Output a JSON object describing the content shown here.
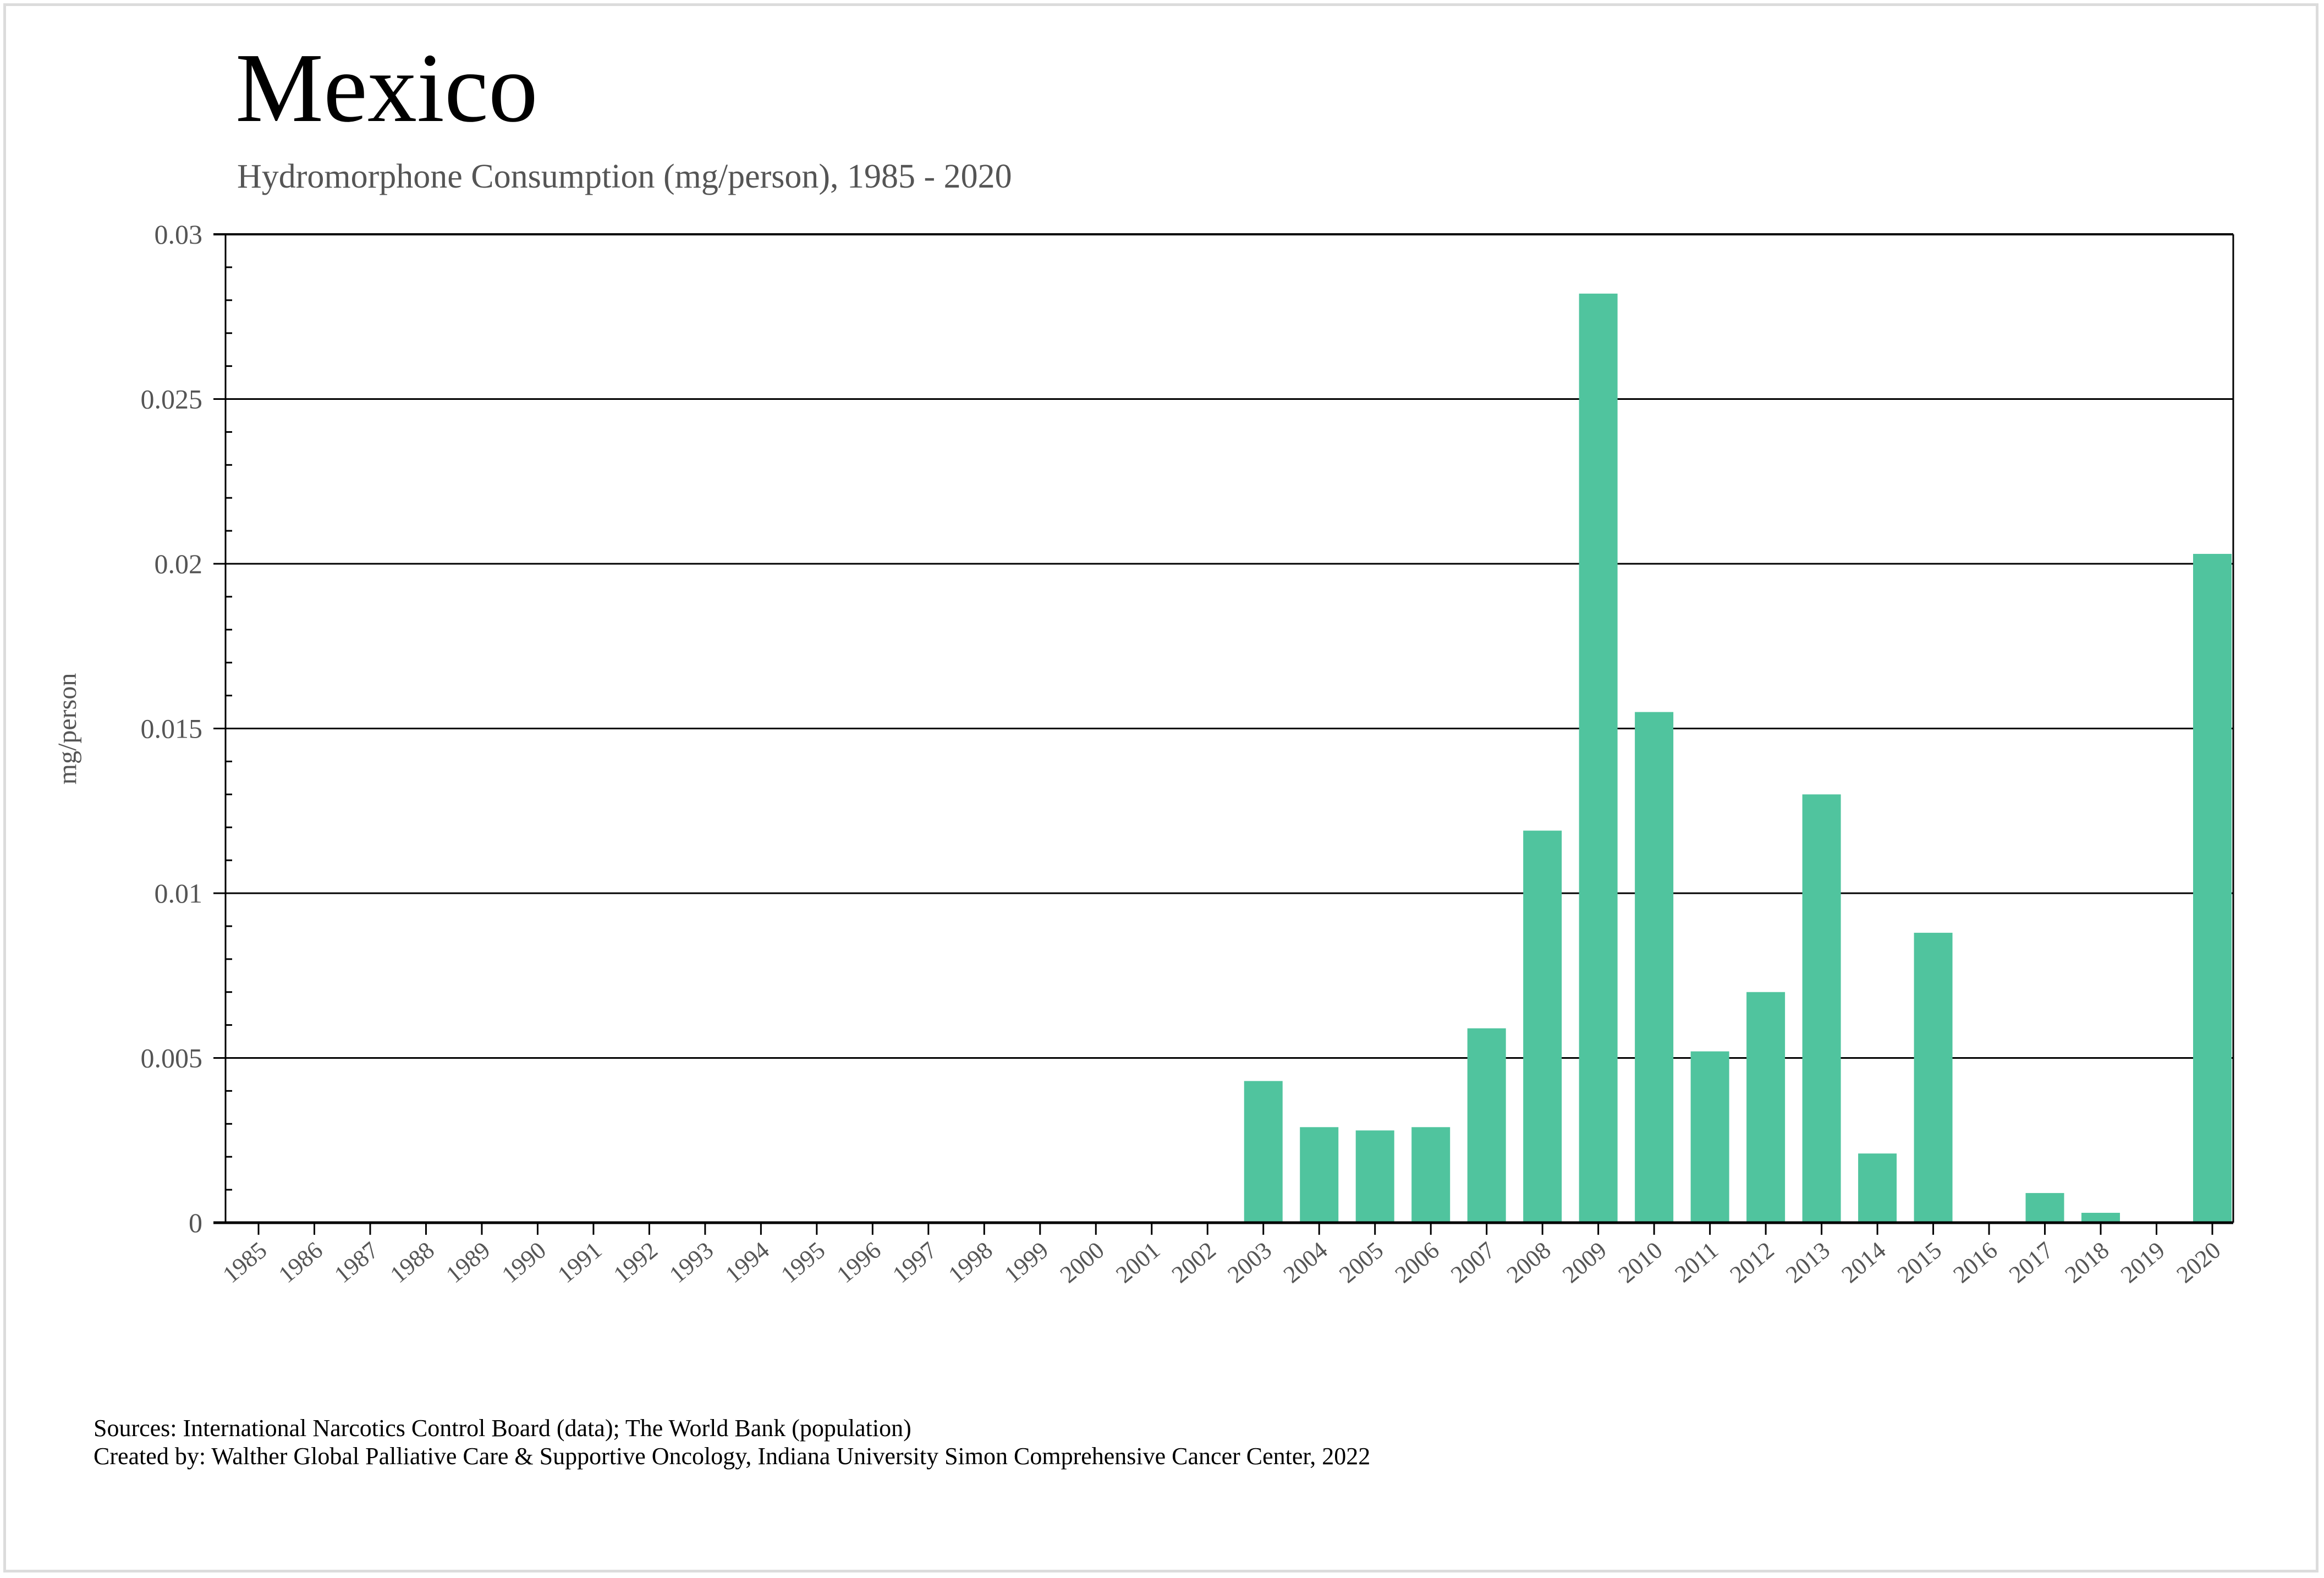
{
  "chart_data": {
    "type": "bar",
    "title": "Mexico",
    "subtitle": "Hydromorphone Consumption (mg/person), 1985 - 2020",
    "xlabel": "",
    "ylabel": "mg/person",
    "ylim": [
      0,
      0.03
    ],
    "yticks": [
      "0",
      "0.005",
      "0.01",
      "0.015",
      "0.02",
      "0.025",
      "0.03"
    ],
    "ytick_values": [
      0,
      0.005,
      0.01,
      0.015,
      0.02,
      0.025,
      0.03
    ],
    "grid": true,
    "bar_color": "#50c49e",
    "categories": [
      "1985",
      "1986",
      "1987",
      "1988",
      "1989",
      "1990",
      "1991",
      "1992",
      "1993",
      "1994",
      "1995",
      "1996",
      "1997",
      "1998",
      "1999",
      "2000",
      "2001",
      "2002",
      "2003",
      "2004",
      "2005",
      "2006",
      "2007",
      "2008",
      "2009",
      "2010",
      "2011",
      "2012",
      "2013",
      "2014",
      "2015",
      "2016",
      "2017",
      "2018",
      "2019",
      "2020"
    ],
    "values": [
      0,
      0,
      0,
      0,
      0,
      0,
      0,
      0,
      0,
      0,
      0,
      0,
      0,
      0,
      0,
      0,
      0,
      0,
      0.0043,
      0.0029,
      0.0028,
      0.0029,
      0.0059,
      0.0119,
      0.0282,
      0.0155,
      0.0052,
      0.007,
      0.013,
      0.0021,
      0.0088,
      0,
      0.0009,
      0.0003,
      0,
      0.0203
    ]
  },
  "footer": {
    "sources": "Sources: International Narcotics Control Board (data); The World Bank (population)",
    "created_by": "Created by: Walther Global Palliative Care & Supportive Oncology, Indiana University Simon Comprehensive Cancer Center, 2022"
  }
}
